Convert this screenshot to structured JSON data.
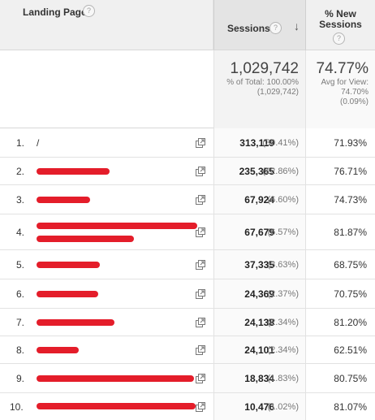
{
  "header": {
    "landing_page": "Landing Page",
    "help_glyph": "?",
    "sessions": "Sessions",
    "sort_arrow": "↓",
    "new_sessions_line1": "% New",
    "new_sessions_line2": "Sessions"
  },
  "totals": {
    "sessions_value": "1,029,742",
    "sessions_pct_line1": "% of Total: 100.00%",
    "sessions_pct_line2": "(1,029,742)",
    "new_value": "74.77%",
    "new_line1": "Avg for View:",
    "new_line2": "74.70%",
    "new_line3": "(0.09%)"
  },
  "rows": [
    {
      "num": "1.",
      "page": "/",
      "sessions": "313,119",
      "pct": "(30.41%)",
      "new": "71.93%"
    },
    {
      "num": "2.",
      "page": "",
      "sessions": "235,365",
      "pct": "(22.86%)",
      "new": "76.71%"
    },
    {
      "num": "3.",
      "page": "",
      "sessions": "67,924",
      "pct": "(6.60%)",
      "new": "74.73%"
    },
    {
      "num": "4.",
      "page": "",
      "sessions": "67,679",
      "pct": "(6.57%)",
      "new": "81.87%"
    },
    {
      "num": "5.",
      "page": "",
      "sessions": "37,335",
      "pct": "(3.63%)",
      "new": "68.75%"
    },
    {
      "num": "6.",
      "page": "",
      "sessions": "24,369",
      "pct": "(2.37%)",
      "new": "70.75%"
    },
    {
      "num": "7.",
      "page": "",
      "sessions": "24,138",
      "pct": "(2.34%)",
      "new": "81.20%"
    },
    {
      "num": "8.",
      "page": "",
      "sessions": "24,101",
      "pct": "(2.34%)",
      "new": "62.51%"
    },
    {
      "num": "9.",
      "page": "",
      "sessions": "18,834",
      "pct": "(1.83%)",
      "new": "80.75%"
    },
    {
      "num": "10.",
      "page": "",
      "sessions": "10,476",
      "pct": "(1.02%)",
      "new": "81.07%"
    }
  ],
  "icons": {
    "help": "help-circle-icon",
    "sort": "sort-descending-icon",
    "open_link": "open-in-new-window-icon"
  },
  "colors": {
    "redaction": "#e41d2a",
    "header_bg": "#f0f0f0",
    "sorted_column_bg": "#e4e4e4"
  }
}
